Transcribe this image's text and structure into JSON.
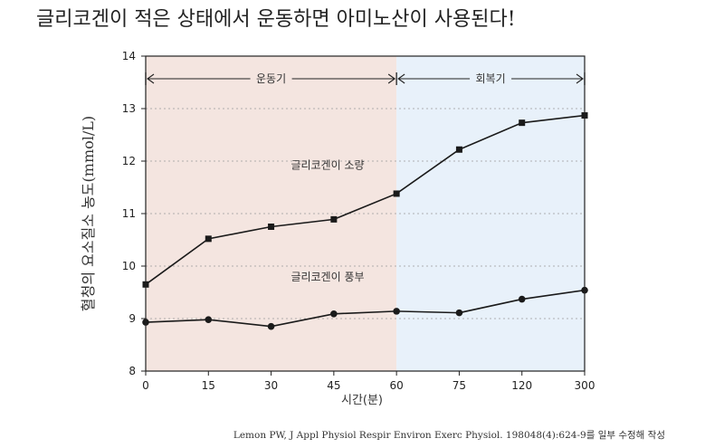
{
  "title": "글리코겐이 적은 상태에서 운동하면 아미노산이 사용된다!",
  "source": "Lemon PW, J Appl Physiol Respir Environ Exerc Physiol. 198048(4):624-9를 일부 수정해 작성",
  "chart_data": {
    "type": "line",
    "xlabel": "시간(분)",
    "ylabel": "혈청의 요소질소 농도(mmol/L)",
    "categories": [
      "0",
      "15",
      "30",
      "45",
      "60",
      "75",
      "120",
      "300"
    ],
    "ylim": [
      8,
      14
    ],
    "yticks": [
      8,
      9,
      10,
      11,
      12,
      13,
      14
    ],
    "grid": "horizontal dotted",
    "phases": [
      {
        "label": "운동기",
        "from": 0,
        "to": 4,
        "color": "#f4e5e0"
      },
      {
        "label": "회복기",
        "from": 4,
        "to": 7,
        "color": "#e8f1fa"
      }
    ],
    "series": [
      {
        "name": "글리코겐이 소량",
        "marker": "square",
        "values": [
          9.65,
          10.52,
          10.75,
          10.89,
          11.38,
          12.22,
          12.73,
          12.87
        ]
      },
      {
        "name": "글리코겐이 풍부",
        "marker": "circle",
        "values": [
          8.93,
          8.98,
          8.85,
          9.09,
          9.14,
          9.11,
          9.37,
          9.54
        ]
      }
    ]
  }
}
